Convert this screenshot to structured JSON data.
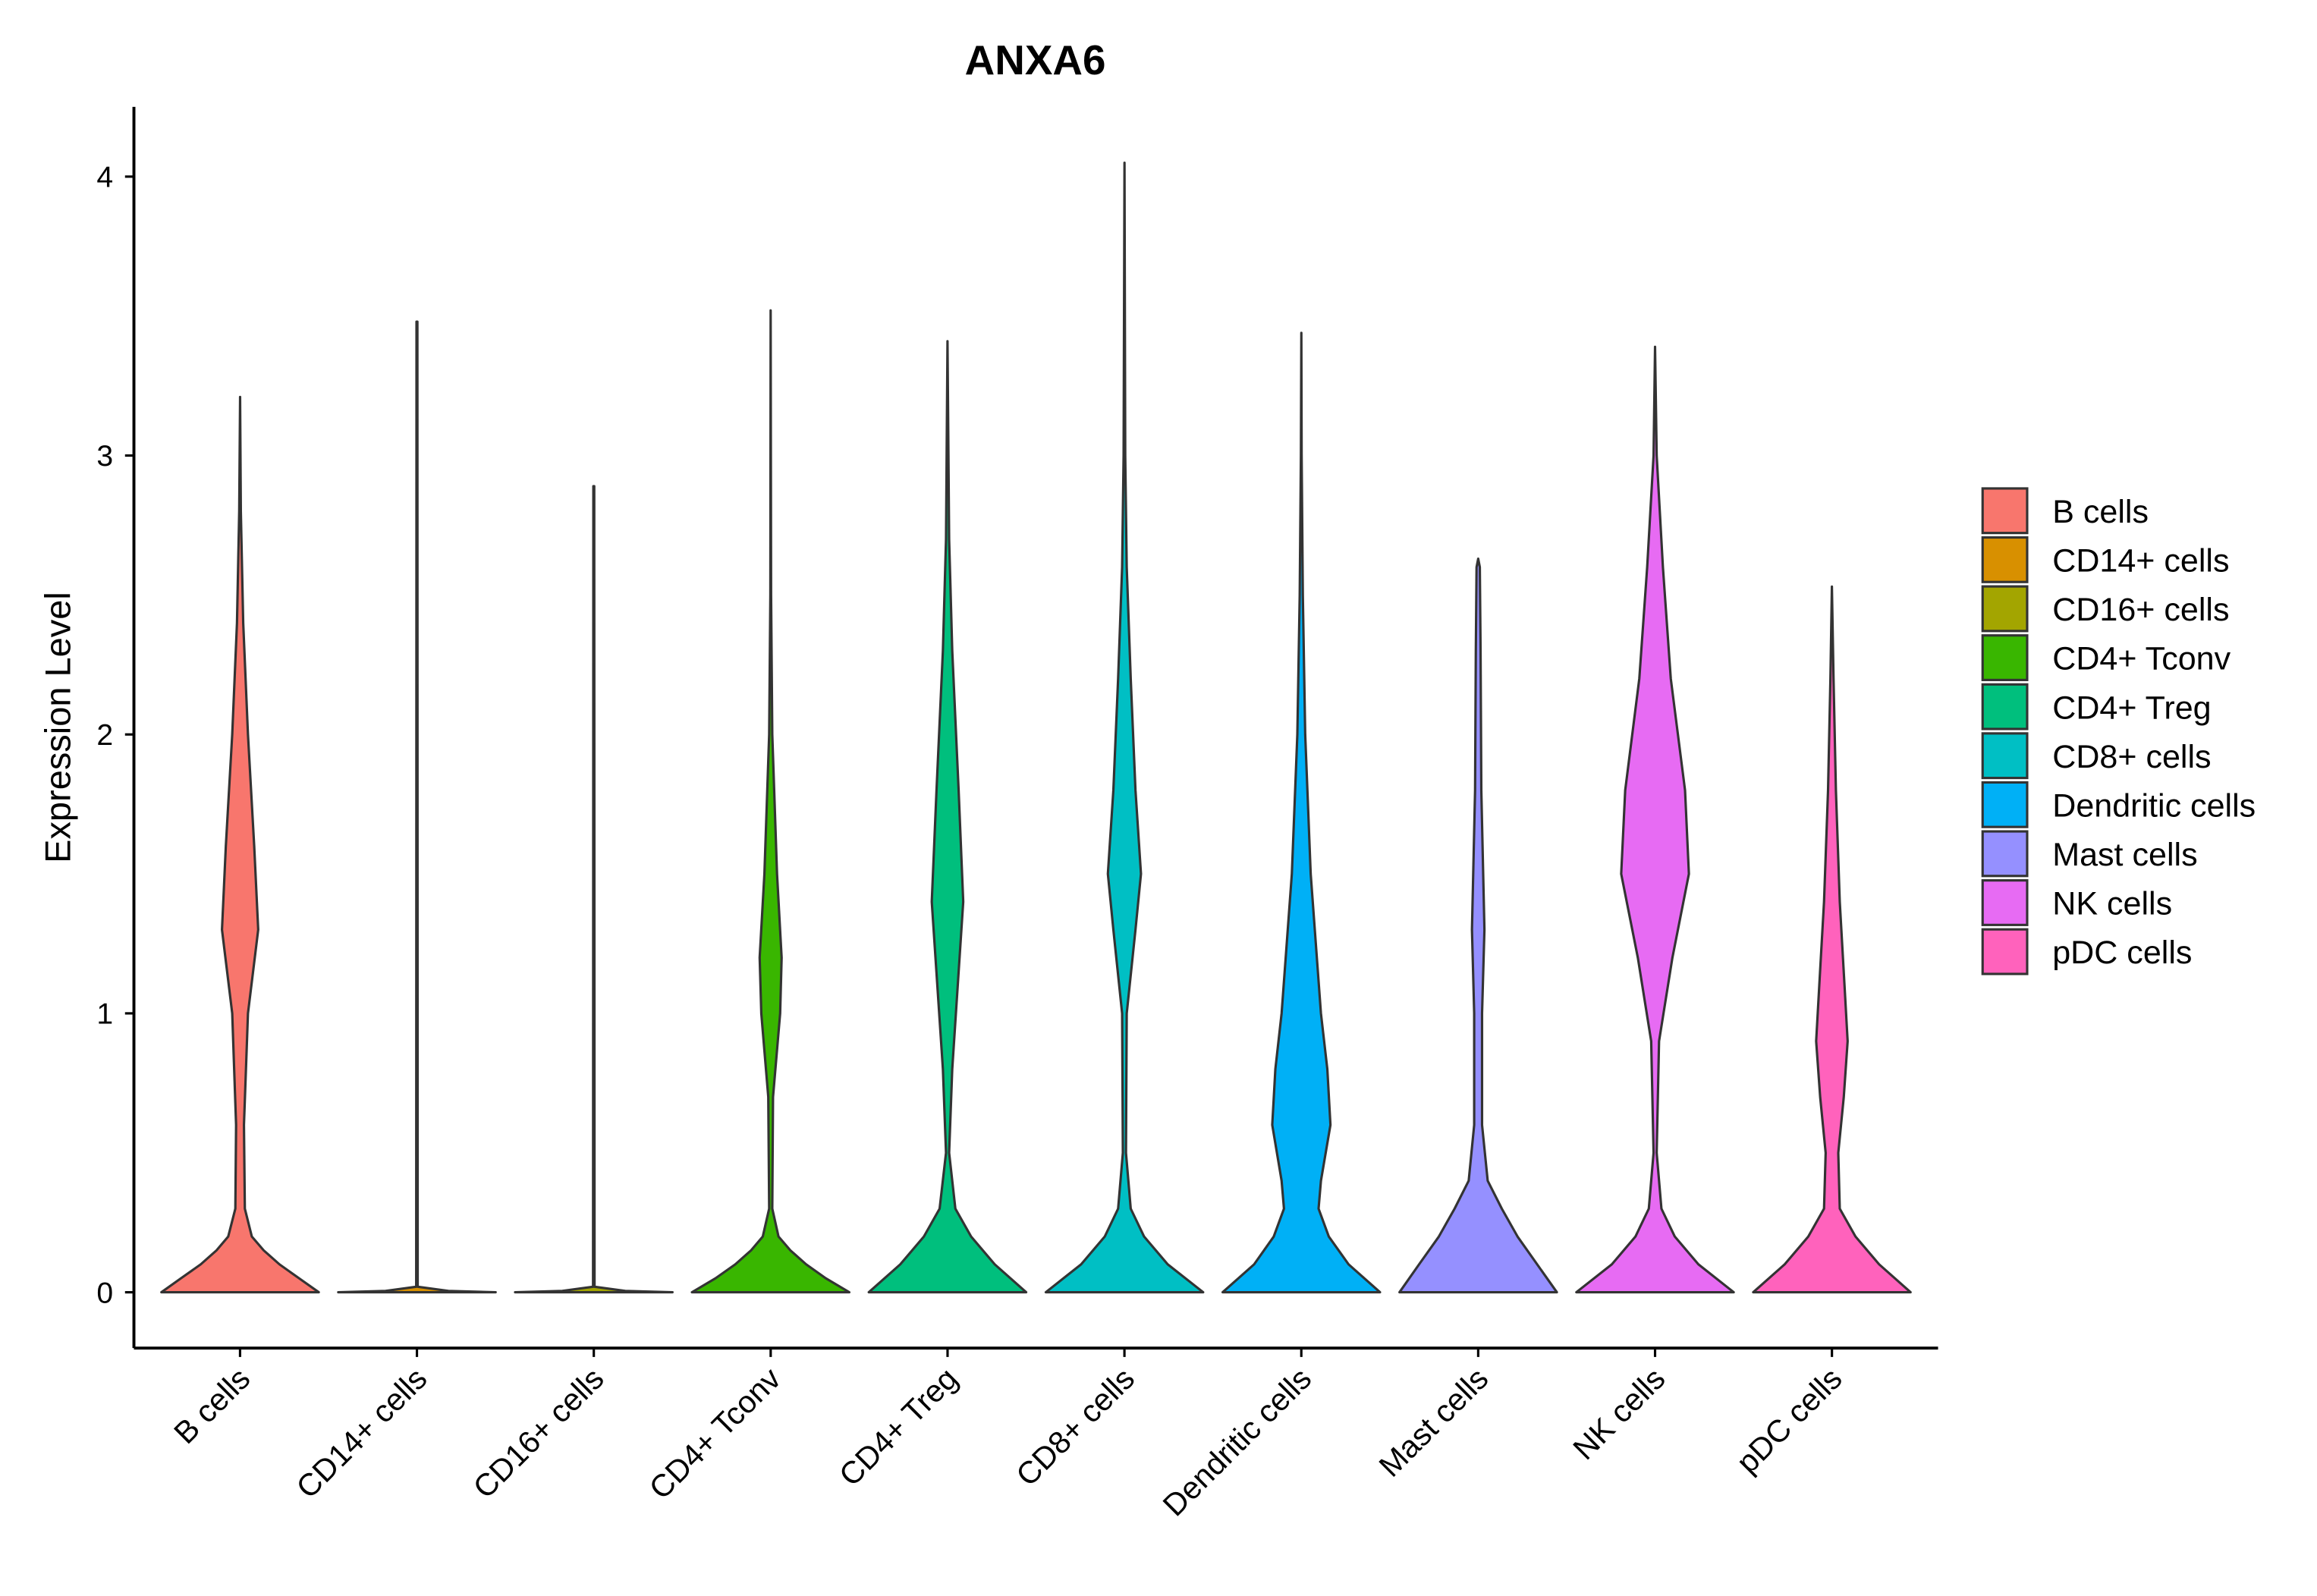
{
  "chart_data": {
    "type": "violin",
    "title": "ANXA6",
    "xlabel": "",
    "ylabel": "Expression Level",
    "ylim": [
      -0.2,
      4.25
    ],
    "xlim": [
      0.4,
      10.6
    ],
    "yticks": [
      0,
      1,
      2,
      3,
      4
    ],
    "grid": false,
    "legend": {
      "placement": "right",
      "title": ""
    },
    "categories": [
      "B cells",
      "CD14+ cells",
      "CD16+ cells",
      "CD4+ Tconv",
      "CD4+ Treg",
      "CD8+ cells",
      "Dendritic cells",
      "Mast cells",
      "NK cells",
      "pDC cells"
    ],
    "colors": [
      "#F8766D",
      "#D89000",
      "#A3A500",
      "#39B600",
      "#00BF7D",
      "#00BFC4",
      "#00B0F6",
      "#9590FF",
      "#E76BF3",
      "#FF62BC"
    ],
    "series": [
      {
        "name": "B cells",
        "max": 3.21,
        "density": [
          [
            0,
            1
          ],
          [
            0.05,
            0.75
          ],
          [
            0.1,
            0.5
          ],
          [
            0.15,
            0.3
          ],
          [
            0.2,
            0.15
          ],
          [
            0.3,
            0.06
          ],
          [
            0.6,
            0.05
          ],
          [
            1.0,
            0.1
          ],
          [
            1.3,
            0.23
          ],
          [
            1.6,
            0.18
          ],
          [
            2.0,
            0.1
          ],
          [
            2.4,
            0.04
          ],
          [
            2.8,
            0.01
          ],
          [
            3.21,
            0
          ]
        ]
      },
      {
        "name": "CD14+ cells",
        "max": 3.48,
        "density": [
          [
            0,
            1
          ],
          [
            0.005,
            0.4
          ],
          [
            0.02,
            0.01
          ],
          [
            3.48,
            0.005
          ]
        ]
      },
      {
        "name": "CD16+ cells",
        "max": 2.89,
        "density": [
          [
            0,
            1
          ],
          [
            0.005,
            0.4
          ],
          [
            0.02,
            0.01
          ],
          [
            2.89,
            0.005
          ]
        ]
      },
      {
        "name": "CD4+ Tconv",
        "max": 3.52,
        "density": [
          [
            0,
            1
          ],
          [
            0.05,
            0.7
          ],
          [
            0.1,
            0.45
          ],
          [
            0.15,
            0.25
          ],
          [
            0.2,
            0.1
          ],
          [
            0.3,
            0.02
          ],
          [
            0.7,
            0.03
          ],
          [
            1.0,
            0.12
          ],
          [
            1.2,
            0.14
          ],
          [
            1.5,
            0.08
          ],
          [
            2.0,
            0.02
          ],
          [
            2.5,
            0.005
          ],
          [
            3.52,
            0
          ]
        ]
      },
      {
        "name": "CD4+ Treg",
        "max": 3.41,
        "density": [
          [
            0,
            1
          ],
          [
            0.1,
            0.6
          ],
          [
            0.2,
            0.3
          ],
          [
            0.3,
            0.1
          ],
          [
            0.5,
            0.02
          ],
          [
            0.8,
            0.06
          ],
          [
            1.4,
            0.2
          ],
          [
            1.8,
            0.14
          ],
          [
            2.3,
            0.06
          ],
          [
            2.7,
            0.02
          ],
          [
            3.41,
            0
          ]
        ]
      },
      {
        "name": "CD8+ cells",
        "max": 4.05,
        "density": [
          [
            0,
            1
          ],
          [
            0.1,
            0.55
          ],
          [
            0.2,
            0.25
          ],
          [
            0.3,
            0.08
          ],
          [
            0.5,
            0.02
          ],
          [
            1.0,
            0.03
          ],
          [
            1.3,
            0.14
          ],
          [
            1.5,
            0.21
          ],
          [
            1.8,
            0.14
          ],
          [
            2.2,
            0.08
          ],
          [
            2.6,
            0.03
          ],
          [
            3.0,
            0.01
          ],
          [
            4.05,
            0
          ]
        ]
      },
      {
        "name": "Dendritic cells",
        "max": 3.44,
        "density": [
          [
            0,
            1
          ],
          [
            0.1,
            0.6
          ],
          [
            0.2,
            0.35
          ],
          [
            0.3,
            0.22
          ],
          [
            0.4,
            0.25
          ],
          [
            0.6,
            0.37
          ],
          [
            0.8,
            0.33
          ],
          [
            1.0,
            0.25
          ],
          [
            1.5,
            0.12
          ],
          [
            2.0,
            0.05
          ],
          [
            2.5,
            0.02
          ],
          [
            3.0,
            0.005
          ],
          [
            3.44,
            0
          ]
        ]
      },
      {
        "name": "Mast cells",
        "max": 2.63,
        "density": [
          [
            0,
            1
          ],
          [
            0.1,
            0.75
          ],
          [
            0.2,
            0.5
          ],
          [
            0.3,
            0.3
          ],
          [
            0.4,
            0.12
          ],
          [
            0.6,
            0.05
          ],
          [
            1.0,
            0.05
          ],
          [
            1.3,
            0.08
          ],
          [
            1.8,
            0.04
          ],
          [
            2.3,
            0.03
          ],
          [
            2.6,
            0.02
          ],
          [
            2.63,
            0
          ]
        ]
      },
      {
        "name": "NK cells",
        "max": 3.39,
        "density": [
          [
            0,
            1
          ],
          [
            0.1,
            0.55
          ],
          [
            0.2,
            0.25
          ],
          [
            0.3,
            0.08
          ],
          [
            0.5,
            0.02
          ],
          [
            0.9,
            0.05
          ],
          [
            1.2,
            0.22
          ],
          [
            1.5,
            0.43
          ],
          [
            1.8,
            0.38
          ],
          [
            2.2,
            0.2
          ],
          [
            2.6,
            0.1
          ],
          [
            3.0,
            0.02
          ],
          [
            3.39,
            0
          ]
        ]
      },
      {
        "name": "pDC cells",
        "max": 2.53,
        "density": [
          [
            0,
            1
          ],
          [
            0.1,
            0.6
          ],
          [
            0.2,
            0.3
          ],
          [
            0.3,
            0.1
          ],
          [
            0.5,
            0.08
          ],
          [
            0.7,
            0.15
          ],
          [
            0.9,
            0.2
          ],
          [
            1.1,
            0.16
          ],
          [
            1.4,
            0.1
          ],
          [
            1.8,
            0.05
          ],
          [
            2.2,
            0.02
          ],
          [
            2.53,
            0
          ]
        ]
      }
    ]
  }
}
